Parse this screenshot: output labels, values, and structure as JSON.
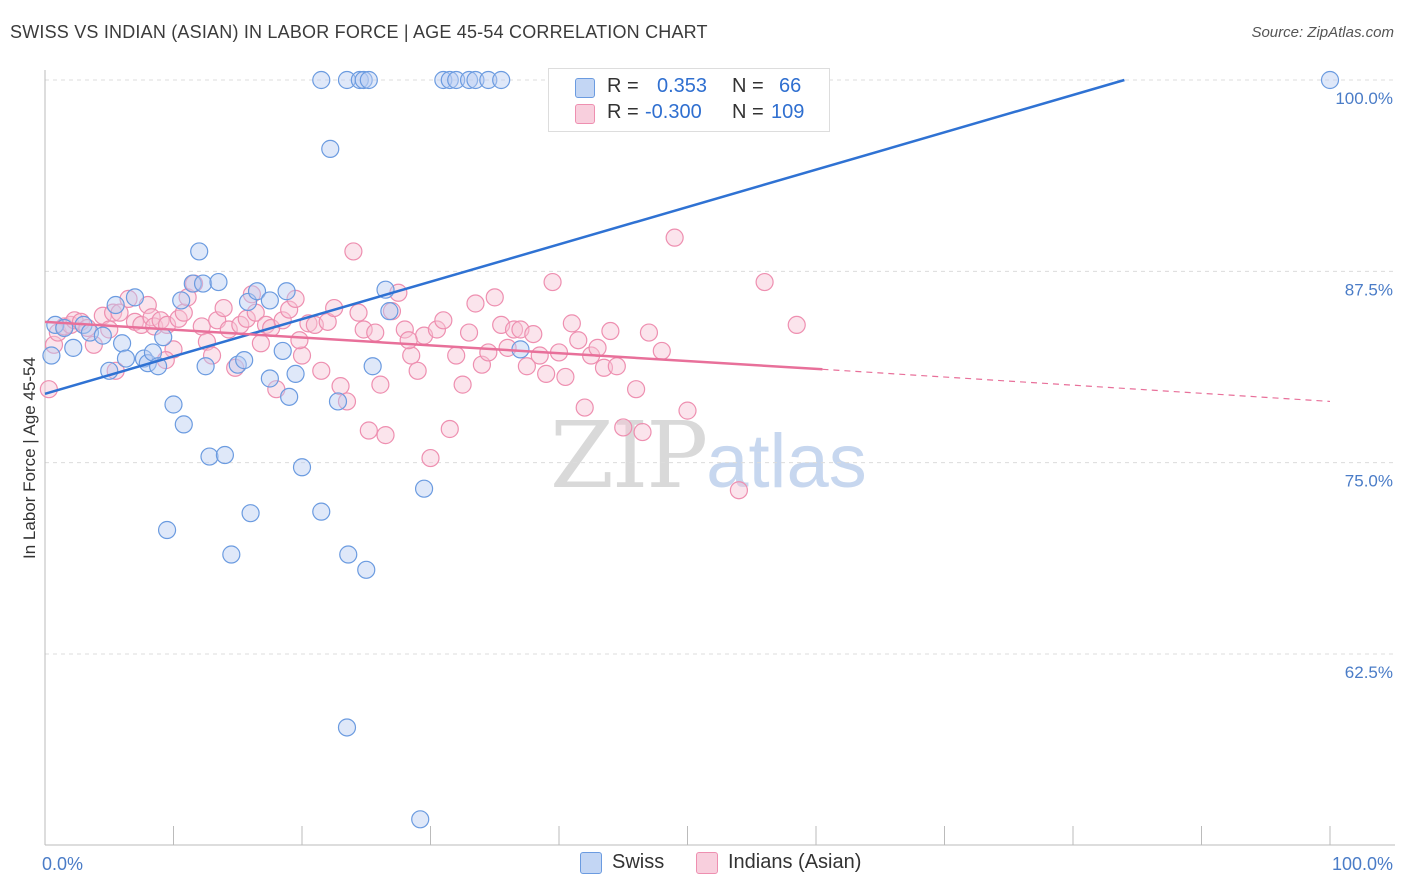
{
  "title": "SWISS VS INDIAN (ASIAN) IN LABOR FORCE | AGE 45-54 CORRELATION CHART",
  "source": "Source: ZipAtlas.com",
  "watermark": {
    "zip": "ZIP",
    "atlas": "atlas"
  },
  "colors": {
    "swiss": "#6b9be0",
    "indians": "#ee8fb0",
    "swiss_line": "#2f72d3",
    "indians_line": "#e8709a",
    "tick_label": "#4a7cc7"
  },
  "legend": {
    "swiss": {
      "r_label": "R =",
      "r_value": "0.353",
      "n_label": "N =",
      "n_value": "66"
    },
    "indians": {
      "r_label": "R =",
      "r_value": "-0.300",
      "n_label": "N =",
      "n_value": "109"
    }
  },
  "bottom_legend": {
    "swiss": "Swiss",
    "indians": "Indians (Asian)"
  },
  "chart_data": {
    "type": "scatter",
    "xlabel": "",
    "ylabel": "In Labor Force | Age 45-54",
    "xlim": [
      0,
      100
    ],
    "ylim": [
      51.5,
      100.5
    ],
    "x_tick_labels": [
      "0.0%",
      "100.0%"
    ],
    "y_ticks": [
      100,
      87.5,
      75,
      62.5
    ],
    "y_tick_labels": [
      "100.0%",
      "87.5%",
      "75.0%",
      "62.5%"
    ],
    "grid": true,
    "legend_position": "top-center",
    "series": [
      {
        "name": "Swiss",
        "trend": {
          "x": [
            0,
            84
          ],
          "y": [
            79.5,
            100
          ]
        },
        "points": [
          [
            0.5,
            82.0
          ],
          [
            0.8,
            84.0
          ],
          [
            1.5,
            83.8
          ],
          [
            2.2,
            82.5
          ],
          [
            3.0,
            84.0
          ],
          [
            3.5,
            83.5
          ],
          [
            4.5,
            83.3
          ],
          [
            5,
            81
          ],
          [
            5.5,
            85.3
          ],
          [
            6,
            82.8
          ],
          [
            6.3,
            81.8
          ],
          [
            7,
            85.8
          ],
          [
            7.7,
            81.8
          ],
          [
            8,
            81.5
          ],
          [
            8.4,
            82.2
          ],
          [
            8.8,
            81.3
          ],
          [
            9.2,
            83.2
          ],
          [
            9.5,
            70.6
          ],
          [
            10,
            78.8
          ],
          [
            10.6,
            85.6
          ],
          [
            10.8,
            77.5
          ],
          [
            11.5,
            86.7
          ],
          [
            12,
            88.8
          ],
          [
            12.3,
            86.7
          ],
          [
            12.5,
            81.3
          ],
          [
            12.8,
            75.4
          ],
          [
            13.5,
            86.8
          ],
          [
            14,
            75.5
          ],
          [
            14.5,
            69
          ],
          [
            15,
            81.4
          ],
          [
            15.5,
            81.7
          ],
          [
            15.8,
            85.5
          ],
          [
            16,
            71.7
          ],
          [
            16.5,
            86.2
          ],
          [
            17.5,
            85.6
          ],
          [
            17.5,
            80.5
          ],
          [
            18.5,
            82.3
          ],
          [
            18.8,
            86.2
          ],
          [
            19,
            79.3
          ],
          [
            19.5,
            80.8
          ],
          [
            20,
            74.7
          ],
          [
            21.5,
            100
          ],
          [
            21.5,
            71.8
          ],
          [
            22.2,
            95.5
          ],
          [
            22.8,
            79
          ],
          [
            23.5,
            100
          ],
          [
            23.6,
            69
          ],
          [
            24.5,
            100
          ],
          [
            24.8,
            100
          ],
          [
            25,
            68
          ],
          [
            25.2,
            100
          ],
          [
            25.5,
            81.3
          ],
          [
            26.5,
            86.3
          ],
          [
            26.8,
            84.9
          ],
          [
            29.2,
            51.7
          ],
          [
            29.5,
            73.3
          ],
          [
            31,
            100
          ],
          [
            31.5,
            100
          ],
          [
            32,
            100
          ],
          [
            33,
            100
          ],
          [
            33.5,
            100
          ],
          [
            34.5,
            100
          ],
          [
            35.5,
            100
          ],
          [
            37,
            82.4
          ],
          [
            100,
            100
          ],
          [
            23.5,
            57.7
          ]
        ]
      },
      {
        "name": "Indians (Asian)",
        "trend": {
          "x": [
            0,
            60.5
          ],
          "y": [
            84.2,
            81.1
          ]
        },
        "trend_dashed": {
          "x": [
            60.5,
            100
          ],
          "y": [
            81.1,
            79.0
          ]
        },
        "points": [
          [
            0.3,
            79.8
          ],
          [
            0.7,
            82.7
          ],
          [
            1,
            83.5
          ],
          [
            1.5,
            83.9
          ],
          [
            2,
            84.0
          ],
          [
            2.3,
            84.3
          ],
          [
            2.8,
            84.2
          ],
          [
            3.3,
            83.8
          ],
          [
            3.8,
            82.7
          ],
          [
            4.5,
            84.6
          ],
          [
            5,
            83.7
          ],
          [
            5.3,
            84.8
          ],
          [
            5.8,
            84.8
          ],
          [
            6.5,
            85.7
          ],
          [
            7,
            84.2
          ],
          [
            7.5,
            84.0
          ],
          [
            8,
            85.3
          ],
          [
            8.3,
            84.5
          ],
          [
            8.5,
            83.9
          ],
          [
            9,
            84.3
          ],
          [
            9.5,
            84.0
          ],
          [
            10,
            82.4
          ],
          [
            10.4,
            84.4
          ],
          [
            10.8,
            84.8
          ],
          [
            11.1,
            85.8
          ],
          [
            11.6,
            86.7
          ],
          [
            12.2,
            83.9
          ],
          [
            12.6,
            82.9
          ],
          [
            13,
            82.0
          ],
          [
            13.4,
            84.3
          ],
          [
            13.9,
            85.1
          ],
          [
            14.3,
            83.7
          ],
          [
            14.8,
            81.2
          ],
          [
            15.2,
            84.0
          ],
          [
            15.7,
            84.4
          ],
          [
            16.1,
            86.0
          ],
          [
            16.4,
            84.8
          ],
          [
            16.8,
            82.8
          ],
          [
            17.2,
            84.0
          ],
          [
            17.6,
            83.8
          ],
          [
            18,
            79.8
          ],
          [
            18.5,
            84.3
          ],
          [
            19,
            85.0
          ],
          [
            19.5,
            85.7
          ],
          [
            20,
            82.0
          ],
          [
            20.5,
            84.1
          ],
          [
            21,
            84.0
          ],
          [
            21.5,
            81.0
          ],
          [
            22,
            84.2
          ],
          [
            22.5,
            85.1
          ],
          [
            23,
            80.0
          ],
          [
            23.5,
            79.0
          ],
          [
            24,
            88.8
          ],
          [
            24.4,
            84.8
          ],
          [
            24.8,
            83.7
          ],
          [
            25.2,
            77.1
          ],
          [
            25.7,
            83.5
          ],
          [
            26.1,
            80.1
          ],
          [
            26.5,
            76.8
          ],
          [
            27,
            84.9
          ],
          [
            27.5,
            86.1
          ],
          [
            28,
            83.7
          ],
          [
            28.5,
            82.0
          ],
          [
            29,
            81.0
          ],
          [
            29.5,
            83.3
          ],
          [
            30,
            75.3
          ],
          [
            30.5,
            83.7
          ],
          [
            31,
            84.3
          ],
          [
            31.5,
            77.2
          ],
          [
            32.0,
            82.0
          ],
          [
            32.5,
            80.1
          ],
          [
            33,
            83.5
          ],
          [
            33.5,
            85.4
          ],
          [
            34,
            81.4
          ],
          [
            34.5,
            82.2
          ],
          [
            35,
            85.8
          ],
          [
            35.5,
            84.0
          ],
          [
            36,
            82.5
          ],
          [
            36.5,
            83.7
          ],
          [
            37,
            83.7
          ],
          [
            37.5,
            81.3
          ],
          [
            38,
            83.4
          ],
          [
            38.5,
            82.0
          ],
          [
            39,
            80.8
          ],
          [
            39.5,
            86.8
          ],
          [
            40,
            82.2
          ],
          [
            40.5,
            80.6
          ],
          [
            41,
            84.1
          ],
          [
            41.5,
            83.0
          ],
          [
            42,
            78.6
          ],
          [
            42.5,
            82.0
          ],
          [
            43,
            82.5
          ],
          [
            43.5,
            81.2
          ],
          [
            44,
            83.6
          ],
          [
            44.5,
            81.3
          ],
          [
            45,
            77.3
          ],
          [
            46,
            79.8
          ],
          [
            46.5,
            77.0
          ],
          [
            47,
            83.5
          ],
          [
            48,
            82.3
          ],
          [
            49,
            89.7
          ],
          [
            50,
            78.4
          ],
          [
            54,
            73.2
          ],
          [
            56,
            86.8
          ],
          [
            58.5,
            84.0
          ],
          [
            28.3,
            83.0
          ],
          [
            19.8,
            83.0
          ],
          [
            9.4,
            81.7
          ],
          [
            5.5,
            81.0
          ]
        ]
      }
    ]
  }
}
